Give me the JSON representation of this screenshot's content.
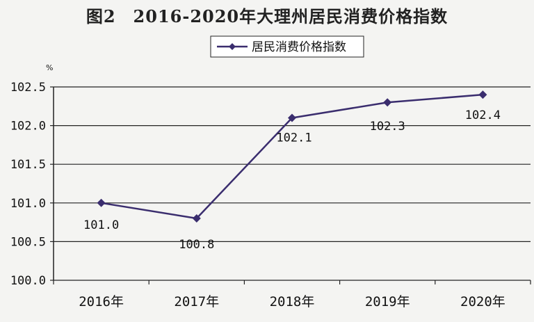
{
  "chart_data": {
    "type": "line",
    "title": "图2　2016-2020年大理州居民消费价格指数",
    "ylabel": "%",
    "categories": [
      "2016年",
      "2017年",
      "2018年",
      "2019年",
      "2020年"
    ],
    "series": [
      {
        "name": "居民消费价格指数",
        "values": [
          101.0,
          100.8,
          102.1,
          102.3,
          102.4
        ],
        "data_labels": [
          "101.0",
          "100.8",
          "102.1",
          "102.3",
          "102.4"
        ],
        "color": "#3a2d6e",
        "marker": "diamond"
      }
    ],
    "yticks": [
      "100.0",
      "100.5",
      "101.0",
      "101.5",
      "102.0",
      "102.5"
    ],
    "ylim": [
      100.0,
      102.5
    ],
    "grid": true,
    "legend_position": "top-center"
  }
}
